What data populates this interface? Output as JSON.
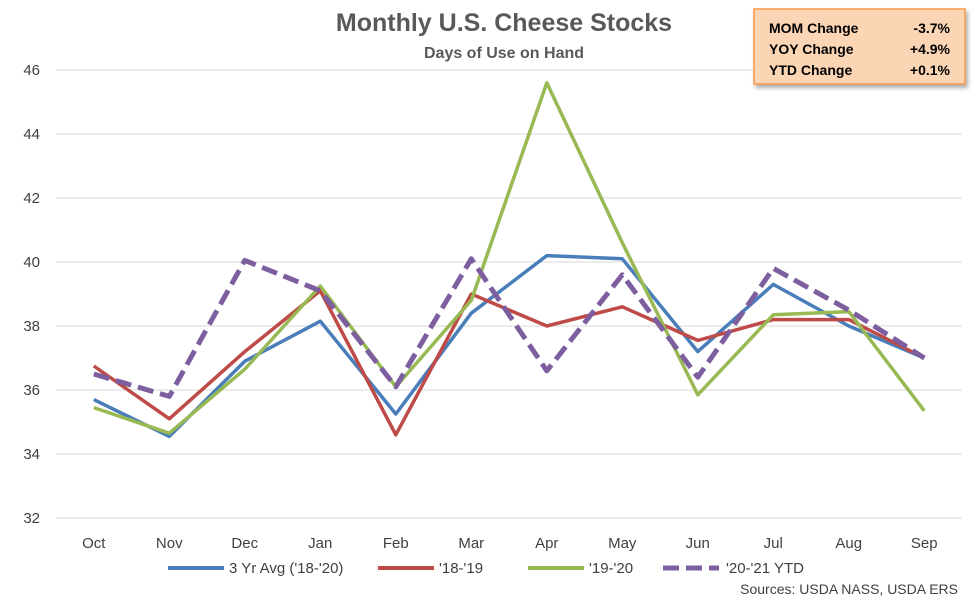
{
  "chart_data": {
    "type": "line",
    "title": "Monthly U.S. Cheese Stocks",
    "subtitle": "Days of Use on Hand",
    "xlabel": "",
    "ylabel": "",
    "categories": [
      "Oct",
      "Nov",
      "Dec",
      "Jan",
      "Feb",
      "Mar",
      "Apr",
      "May",
      "Jun",
      "Jul",
      "Aug",
      "Sep"
    ],
    "ylim": [
      32,
      46
    ],
    "yticks": [
      "32",
      "34",
      "36",
      "38",
      "40",
      "42",
      "44",
      "46"
    ],
    "grid": "horizontal",
    "legend_position": "bottom",
    "series": [
      {
        "name": "3 Yr Avg ('18-'20)",
        "color": "#4a7ebb",
        "dash": "solid",
        "values": [
          35.7,
          34.55,
          36.9,
          38.15,
          35.25,
          38.4,
          40.2,
          40.1,
          37.2,
          39.3,
          38.0,
          37.0
        ]
      },
      {
        "name": "'18-'19",
        "color": "#be4b48",
        "dash": "solid",
        "values": [
          36.75,
          35.1,
          37.2,
          39.1,
          34.6,
          39.0,
          38.0,
          38.6,
          37.55,
          38.2,
          38.2,
          37.0
        ]
      },
      {
        "name": "'19-'20",
        "color": "#98b954",
        "dash": "solid",
        "values": [
          35.45,
          34.65,
          36.65,
          39.25,
          36.1,
          38.8,
          45.6,
          40.6,
          35.85,
          38.35,
          38.45,
          35.35
        ]
      },
      {
        "name": "'20-'21 YTD",
        "color": "#7d5fa0",
        "dash": "dashed",
        "values": [
          36.5,
          35.8,
          40.05,
          39.1,
          36.1,
          40.1,
          36.6,
          39.6,
          36.4,
          39.8,
          38.5,
          37.0
        ]
      }
    ],
    "source_note": "Sources: USDA NASS, USDA ERS"
  },
  "summary_box": {
    "rows": [
      {
        "label": "MOM Change",
        "value": "-3.7%"
      },
      {
        "label": "YOY Change",
        "value": "+4.9%"
      },
      {
        "label": "YTD Change",
        "value": "+0.1%"
      }
    ],
    "fill_color": "#fcd5b4",
    "border_color": "#f79646"
  }
}
